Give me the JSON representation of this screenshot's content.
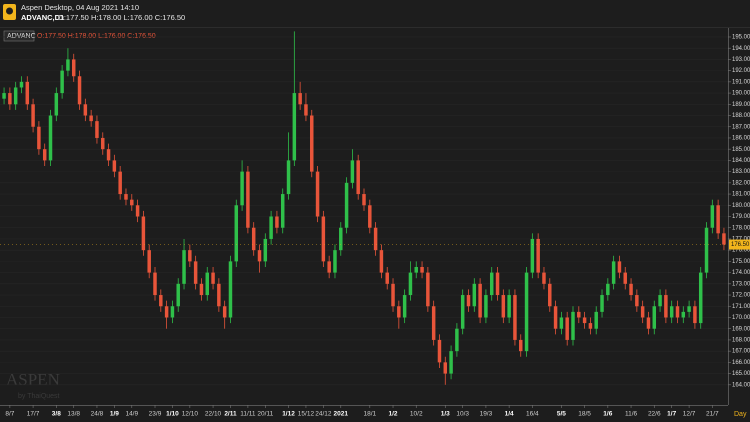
{
  "header": {
    "app_title": "Aspen Desktop, 04 Aug 2021 14:10",
    "instrument": "ADVANC,D1",
    "ohlc": "O:177.50 H:178.00 L:176.00 C:176.50"
  },
  "chart_data": {
    "type": "candlestick",
    "symbol": "ADVANC",
    "ohlc_label": "O:177.50 H:178.00 L:176.00 C:176.50",
    "watermark": "ASPEN",
    "watermark_sub": "by ThaiQuest",
    "x_label": "Day",
    "up_color": "#2fc04a",
    "down_color": "#e8553a",
    "grid": true,
    "ylim": [
      162.2,
      195.8
    ],
    "yticks": [
      {
        "value": 164,
        "label": "164.00"
      },
      {
        "value": 165,
        "label": "165.00"
      },
      {
        "value": 166,
        "label": "166.00"
      },
      {
        "value": 167,
        "label": "167.00"
      },
      {
        "value": 168,
        "label": "168.00"
      },
      {
        "value": 169,
        "label": "169.00"
      },
      {
        "value": 170,
        "label": "170.00"
      },
      {
        "value": 171,
        "label": "171.00"
      },
      {
        "value": 172,
        "label": "172.00"
      },
      {
        "value": 173,
        "label": "173.00"
      },
      {
        "value": 174,
        "label": "174.00"
      },
      {
        "value": 175,
        "label": "175.00"
      },
      {
        "value": 176,
        "label": "176.00"
      },
      {
        "value": 177,
        "label": "177.00"
      },
      {
        "value": 178,
        "label": "178.00"
      },
      {
        "value": 179,
        "label": "179.00"
      },
      {
        "value": 180,
        "label": "180.00"
      },
      {
        "value": 181,
        "label": "181.00"
      },
      {
        "value": 182,
        "label": "182.00"
      },
      {
        "value": 183,
        "label": "183.00"
      },
      {
        "value": 184,
        "label": "184.00"
      },
      {
        "value": 185,
        "label": "185.00"
      },
      {
        "value": 186,
        "label": "186.00"
      },
      {
        "value": 187,
        "label": "187.00"
      },
      {
        "value": 188,
        "label": "188.00"
      },
      {
        "value": 189,
        "label": "189.00"
      },
      {
        "value": 190,
        "label": "190.00"
      },
      {
        "value": 191,
        "label": "191.00"
      },
      {
        "value": 192,
        "label": "192.00"
      },
      {
        "value": 193,
        "label": "193.00"
      },
      {
        "value": 194,
        "label": "194.00"
      },
      {
        "value": 195,
        "label": "195.00"
      }
    ],
    "last_price": {
      "value": 176.5,
      "label": "176.50"
    },
    "xlim": [
      -0.7,
      124.7
    ],
    "xticks": [
      {
        "value": 1,
        "label": "8/7"
      },
      {
        "value": 5,
        "label": "17/7"
      },
      {
        "value": 9,
        "label": "3/8"
      },
      {
        "value": 12,
        "label": "13/8"
      },
      {
        "value": 16,
        "label": "24/8"
      },
      {
        "value": 19,
        "label": "1/9"
      },
      {
        "value": 22,
        "label": "14/9"
      },
      {
        "value": 26,
        "label": "23/9"
      },
      {
        "value": 29,
        "label": "1/10"
      },
      {
        "value": 32,
        "label": "12/10"
      },
      {
        "value": 36,
        "label": "22/10"
      },
      {
        "value": 39,
        "label": "2/11"
      },
      {
        "value": 42,
        "label": "11/11"
      },
      {
        "value": 45,
        "label": "20/11"
      },
      {
        "value": 49,
        "label": "1/12"
      },
      {
        "value": 52,
        "label": "15/12"
      },
      {
        "value": 55,
        "label": "24/12"
      },
      {
        "value": 58,
        "label": "2021"
      },
      {
        "value": 63,
        "label": "18/1"
      },
      {
        "value": 67,
        "label": "1/2"
      },
      {
        "value": 71,
        "label": "10/2"
      },
      {
        "value": 76,
        "label": "1/3"
      },
      {
        "value": 79,
        "label": "10/3"
      },
      {
        "value": 83,
        "label": "19/3"
      },
      {
        "value": 87,
        "label": "1/4"
      },
      {
        "value": 91,
        "label": "16/4"
      },
      {
        "value": 96,
        "label": "5/5"
      },
      {
        "value": 100,
        "label": "18/5"
      },
      {
        "value": 104,
        "label": "1/6"
      },
      {
        "value": 108,
        "label": "11/6"
      },
      {
        "value": 112,
        "label": "22/6"
      },
      {
        "value": 115,
        "label": "1/7"
      },
      {
        "value": 118,
        "label": "12/7"
      },
      {
        "value": 122,
        "label": "21/7"
      }
    ],
    "bold_xticks": [
      "3/8",
      "1/9",
      "1/10",
      "2/11",
      "1/12",
      "2021",
      "1/2",
      "1/3",
      "1/4",
      "5/5",
      "1/6",
      "1/7"
    ],
    "series": [
      {
        "name": "ADVANC",
        "open": [
          189.5,
          190,
          189,
          190.5,
          191,
          189,
          187,
          185,
          184,
          188,
          190,
          192,
          193,
          191.5,
          189,
          188,
          187.5,
          186,
          185,
          184,
          183,
          181,
          180.5,
          180,
          179,
          176,
          174,
          172,
          171,
          170,
          171,
          173,
          176,
          175,
          173,
          172,
          174,
          173,
          171,
          170,
          175,
          180,
          183,
          178,
          176,
          175,
          177,
          179,
          178,
          181,
          184,
          190,
          189,
          188,
          183,
          179,
          175,
          174,
          176,
          178,
          182,
          184,
          181,
          180,
          178,
          176,
          174,
          173,
          171,
          170,
          172,
          174,
          174.5,
          174,
          171,
          168,
          166,
          165,
          167,
          169,
          172,
          171,
          173,
          170,
          172,
          174,
          172,
          170,
          172,
          168,
          167,
          174,
          177,
          174,
          173,
          171,
          169,
          170,
          168,
          170.5,
          170,
          169.5,
          169,
          170.5,
          172,
          173,
          175,
          174,
          173,
          172,
          171,
          170,
          169,
          171,
          172,
          170,
          171,
          170,
          170.5,
          171,
          169.5,
          174,
          178,
          180,
          177.5
        ],
        "high": [
          190.5,
          190.5,
          191,
          191.5,
          191.5,
          189.5,
          187.5,
          185.5,
          188.5,
          190.5,
          192.5,
          194,
          193.5,
          192,
          189.5,
          188.5,
          188,
          186.5,
          185.5,
          184.5,
          183.5,
          181.5,
          181,
          180.5,
          179.5,
          176.5,
          174.5,
          172.5,
          171.5,
          171.5,
          173.5,
          177,
          176.5,
          175.5,
          173.5,
          174.5,
          174.5,
          173.5,
          171.5,
          175.5,
          180.5,
          184,
          183.5,
          178.5,
          176.5,
          177.5,
          179.5,
          179.5,
          181.5,
          186.5,
          195.5,
          191,
          190,
          188.5,
          183.5,
          179.5,
          175.5,
          176.5,
          178.5,
          182.5,
          185,
          184.5,
          181.5,
          180.5,
          178.5,
          176.5,
          174.5,
          173.5,
          171.5,
          172.5,
          175,
          175,
          175,
          174.5,
          171.5,
          168.5,
          166.5,
          167.5,
          169.5,
          172.5,
          172.5,
          173.5,
          173.5,
          172.5,
          174.5,
          174.5,
          172.5,
          172.5,
          172.5,
          168.5,
          174.5,
          177.5,
          177.5,
          174.5,
          173.5,
          171.5,
          170.5,
          170.5,
          171,
          171,
          170.5,
          170,
          171,
          172.5,
          173.5,
          175.5,
          175.5,
          174.5,
          173.5,
          172.5,
          171.5,
          170.5,
          171.5,
          172.5,
          172.5,
          171.5,
          171.5,
          171,
          171.5,
          171.5,
          174.5,
          178.5,
          180.5,
          180.5,
          178
        ],
        "low": [
          189,
          188.5,
          188.5,
          190,
          188.5,
          186.5,
          184.5,
          183.5,
          183.5,
          187.5,
          189.5,
          191.5,
          191,
          188.5,
          187.5,
          187,
          185.5,
          184.5,
          183.5,
          182.5,
          180.5,
          180,
          179.5,
          178.5,
          175.5,
          173.5,
          171.5,
          170.5,
          169,
          169.5,
          170.5,
          172.5,
          174.5,
          172.5,
          171.5,
          171.5,
          172.5,
          170.5,
          169,
          169.5,
          174.5,
          179.5,
          177.5,
          175.5,
          174,
          174.5,
          176.5,
          177.5,
          177.5,
          180.5,
          183.5,
          188.5,
          187.5,
          182.5,
          178.5,
          174.5,
          173.5,
          173.5,
          175.5,
          177.5,
          181.5,
          180.5,
          179.5,
          177.5,
          175.5,
          173.5,
          172.5,
          170.5,
          169,
          169.5,
          171.5,
          173.5,
          173.5,
          170.5,
          167.5,
          165.5,
          164,
          164.5,
          166.5,
          168.5,
          170.5,
          170.5,
          169.5,
          169.5,
          171.5,
          171.5,
          169.5,
          169.5,
          167.5,
          166.5,
          166.5,
          173.5,
          173.5,
          172.5,
          170.5,
          168.5,
          168.5,
          167.5,
          167.5,
          169.5,
          169,
          168.5,
          168.5,
          170,
          171.5,
          172.5,
          173.5,
          172.5,
          171.5,
          170.5,
          169.5,
          168.5,
          168.5,
          170.5,
          169.5,
          169.5,
          169.5,
          169.5,
          170,
          169,
          169,
          173.5,
          177.5,
          177,
          176
        ],
        "close": [
          190,
          189,
          190.5,
          191,
          189,
          187,
          185,
          184,
          188,
          190,
          192,
          193,
          191.5,
          189,
          188,
          187.5,
          186,
          185,
          184,
          183,
          181,
          180.5,
          180,
          179,
          176,
          174,
          172,
          171,
          170,
          171,
          173,
          176,
          175,
          173,
          172,
          174,
          173,
          171,
          170,
          175,
          180,
          183,
          178,
          176,
          175,
          177,
          179,
          178,
          181,
          184,
          190,
          189,
          188,
          183,
          179,
          175,
          174,
          176,
          178,
          182,
          184,
          181,
          180,
          178,
          176,
          174,
          173,
          171,
          170,
          172,
          174,
          174.5,
          174,
          171,
          168,
          166,
          165,
          167,
          169,
          172,
          171,
          173,
          170,
          172,
          174,
          172,
          170,
          172,
          168,
          167,
          174,
          177,
          174,
          173,
          171,
          169,
          170,
          168,
          170.5,
          170,
          169.5,
          169,
          170.5,
          172,
          173,
          175,
          174,
          173,
          172,
          171,
          170,
          169,
          171,
          172,
          170,
          171,
          170,
          170.5,
          171,
          169.5,
          174,
          178,
          180,
          177.5,
          176.5
        ]
      }
    ]
  }
}
